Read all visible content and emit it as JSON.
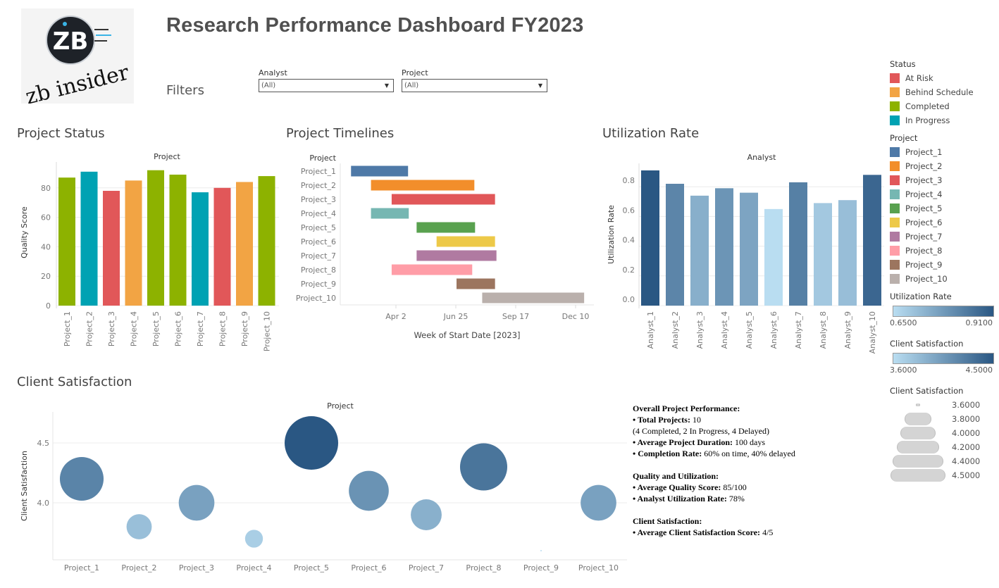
{
  "header": {
    "title": "Research Performance Dashboard FY2023",
    "logo_text_top": "ZB",
    "logo_text_bottom": "zb insider"
  },
  "filters": {
    "label": "Filters",
    "analyst": {
      "label": "Analyst",
      "value": "(All)"
    },
    "project": {
      "label": "Project",
      "value": "(All)"
    }
  },
  "sections": {
    "status": "Project Status",
    "timelines": "Project Timelines",
    "utilization": "Utilization Rate",
    "satisfaction": "Client Satisfaction"
  },
  "colors": {
    "status": {
      "At Risk": "#e15759",
      "Behind Schedule": "#f2a444",
      "Completed": "#8db200",
      "In Progress": "#00a2b3"
    },
    "projects": [
      "#4e79a7",
      "#f28e2b",
      "#e15759",
      "#76b7b2",
      "#59a14f",
      "#edc948",
      "#b07aa1",
      "#ff9da7",
      "#9c755f",
      "#bab0ac"
    ],
    "gradient_low": "#b9ddf1",
    "gradient_high": "#2a5783"
  },
  "chart_data": [
    {
      "id": "status",
      "type": "bar",
      "title": "Project",
      "xlabel": "",
      "ylabel": "Quality Score",
      "ylim": [
        0,
        100
      ],
      "yticks": [
        "0",
        "20",
        "40",
        "60",
        "80"
      ],
      "categories": [
        "Project_1",
        "Project_2",
        "Project_3",
        "Project_4",
        "Project_5",
        "Project_6",
        "Project_7",
        "Project_8",
        "Project_9",
        "Project_10"
      ],
      "values": [
        87,
        91,
        78,
        85,
        92,
        89,
        77,
        80,
        84,
        88
      ],
      "status": [
        "Completed",
        "In Progress",
        "At Risk",
        "Behind Schedule",
        "Completed",
        "Completed",
        "In Progress",
        "At Risk",
        "Behind Schedule",
        "Completed"
      ]
    },
    {
      "id": "timelines",
      "type": "gantt",
      "ylabel": "Project",
      "xlabel": "Week of Start Date [2023]",
      "xticks": [
        "Apr 2",
        "Jun 25",
        "Sep 17",
        "Dec 10"
      ],
      "xtick_dates": [
        "2023-04-02",
        "2023-06-25",
        "2023-09-17",
        "2023-12-10"
      ],
      "categories": [
        "Project_1",
        "Project_2",
        "Project_3",
        "Project_4",
        "Project_5",
        "Project_6",
        "Project_7",
        "Project_8",
        "Project_9",
        "Project_10"
      ],
      "start": [
        "2023-01-29",
        "2023-02-26",
        "2023-03-27",
        "2023-02-26",
        "2023-05-01",
        "2023-05-29",
        "2023-05-01",
        "2023-03-27",
        "2023-06-26",
        "2023-08-01"
      ],
      "end": [
        "2023-04-19",
        "2023-07-21",
        "2023-08-19",
        "2023-04-20",
        "2023-07-22",
        "2023-08-19",
        "2023-08-21",
        "2023-07-18",
        "2023-08-19",
        "2023-12-22"
      ]
    },
    {
      "id": "utilization",
      "type": "bar",
      "title": "Analyst",
      "ylabel": "Utilization Rate",
      "ylim": [
        0,
        0.95
      ],
      "yticks": [
        "0.0",
        "0.2",
        "0.4",
        "0.6",
        "0.8"
      ],
      "categories": [
        "Analyst_1",
        "Analyst_2",
        "Analyst_3",
        "Analyst_4",
        "Analyst_5",
        "Analyst_6",
        "Analyst_7",
        "Analyst_8",
        "Analyst_9",
        "Analyst_10"
      ],
      "values": [
        0.91,
        0.82,
        0.74,
        0.79,
        0.76,
        0.65,
        0.83,
        0.69,
        0.71,
        0.88
      ]
    },
    {
      "id": "satisfaction",
      "type": "scatter",
      "title": "Project",
      "ylabel": "Client Satisfaction",
      "yticks": [
        "4.0",
        "4.5"
      ],
      "categories": [
        "Project_1",
        "Project_2",
        "Project_3",
        "Project_4",
        "Project_5",
        "Project_6",
        "Project_7",
        "Project_8",
        "Project_9",
        "Project_10"
      ],
      "values": [
        4.2,
        3.8,
        4.0,
        3.7,
        4.5,
        4.1,
        3.9,
        4.3,
        3.6,
        4.0
      ]
    }
  ],
  "summary": {
    "h1": "Overall Project Performance:",
    "total_label": "• Total Projects:",
    "total_value": " 10",
    "breakdown": "(4 Completed, 2 In Progress, 4 Delayed)",
    "duration_label": "• Average Project Duration:",
    "duration_value": " 100 days",
    "completion_label": "• Completion Rate:",
    "completion_value": " 60% on time, 40% delayed",
    "h2": "Quality and Utilization:",
    "quality_label": "• Average Quality Score:",
    "quality_value": " 85/100",
    "util_label": "• Analyst Utilization Rate:",
    "util_value": " 78%",
    "h3": "Client Satisfaction:",
    "csat_label": "• Average Client Satisfaction Score:",
    "csat_value": " 4/5"
  },
  "legend": {
    "status_title": "Status",
    "status_items": [
      "At Risk",
      "Behind Schedule",
      "Completed",
      "In Progress"
    ],
    "project_title": "Project",
    "project_items": [
      "Project_1",
      "Project_2",
      "Project_3",
      "Project_4",
      "Project_5",
      "Project_6",
      "Project_7",
      "Project_8",
      "Project_9",
      "Project_10"
    ],
    "util_title": "Utilization Rate",
    "util_min": "0.6500",
    "util_max": "0.9100",
    "csat_color_title": "Client Satisfaction",
    "csat_min": "3.6000",
    "csat_max": "4.5000",
    "csat_size_title": "Client Satisfaction",
    "csat_sizes": [
      "3.6000",
      "3.8000",
      "4.0000",
      "4.2000",
      "4.4000",
      "4.5000"
    ]
  }
}
